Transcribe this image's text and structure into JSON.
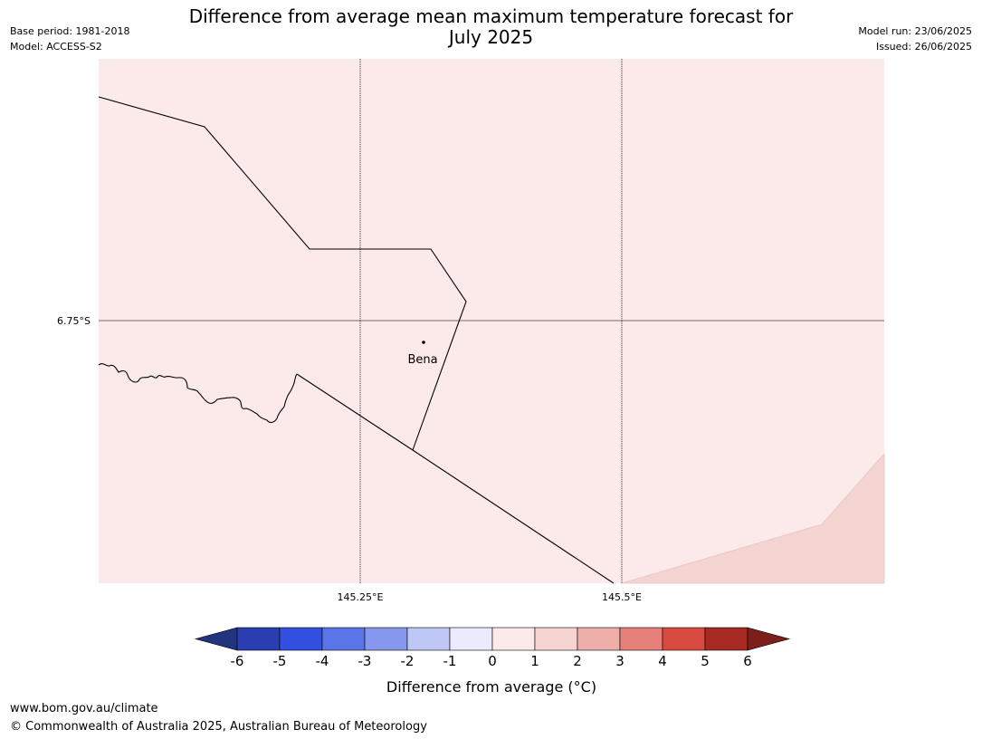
{
  "header": {
    "title_line1": "Difference from average mean maximum temperature forecast for",
    "title_line2": "July 2025",
    "base_period": "Base period: 1981-2018",
    "model": "Model: ACCESS-S2",
    "model_run": "Model run: 23/06/2025",
    "issued": "Issued: 26/06/2025"
  },
  "map": {
    "lat_label": "6.75°S",
    "lon_labels": [
      "145.25°E",
      "145.5°E"
    ],
    "place_label": "Bena",
    "fill_colors": {
      "zero_to_one": "#fbeae9",
      "one_to_two": "#f3d4d1"
    }
  },
  "colorbar": {
    "title": "Difference from average (°C)",
    "ticks": [
      "-6",
      "-5",
      "-4",
      "-3",
      "-2",
      "-1",
      "0",
      "1",
      "2",
      "3",
      "4",
      "5",
      "6"
    ],
    "colors": [
      "#23347f",
      "#2a3db1",
      "#324fdd",
      "#5b74e8",
      "#8797ed",
      "#bfc7f5",
      "#eaebfd",
      "#fbeae9",
      "#f5d3d0",
      "#edada8",
      "#e5807a",
      "#d84a3f",
      "#a72a22",
      "#7c1e1a"
    ]
  },
  "footer": {
    "url": "www.bom.gov.au/climate",
    "copyright": "© Commonwealth of Australia 2025, Australian Bureau of Meteorology"
  }
}
